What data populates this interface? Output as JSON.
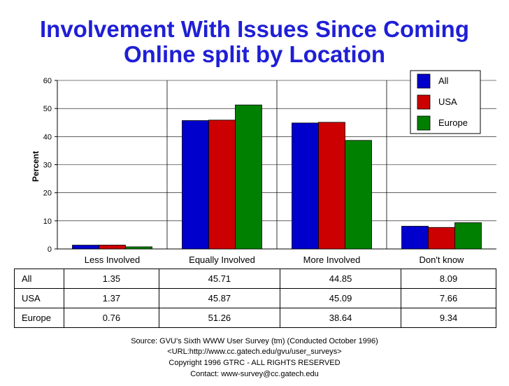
{
  "chart_data": {
    "type": "bar",
    "title": "Involvement With Issues Since Coming Online split by Location",
    "title_lines": [
      "Involvement With Issues Since Coming",
      "Online split by Location"
    ],
    "ylabel": "Percent",
    "ylim": [
      0,
      60
    ],
    "yticks": [
      0,
      10,
      20,
      30,
      40,
      50,
      60
    ],
    "categories": [
      "Less Involved",
      "Equally Involved",
      "More Involved",
      "Don't know"
    ],
    "series": [
      {
        "name": "All",
        "color": "#0000cc",
        "values": [
          1.35,
          45.71,
          44.85,
          8.09
        ]
      },
      {
        "name": "USA",
        "color": "#cc0000",
        "values": [
          1.37,
          45.87,
          45.09,
          7.66
        ]
      },
      {
        "name": "Europe",
        "color": "#008000",
        "values": [
          0.76,
          51.26,
          38.64,
          9.34
        ]
      }
    ],
    "table_rows": [
      {
        "label": "All",
        "values": [
          "1.35",
          "45.71",
          "44.85",
          "8.09"
        ]
      },
      {
        "label": "USA",
        "values": [
          "1.37",
          "45.87",
          "45.09",
          "7.66"
        ]
      },
      {
        "label": "Europe",
        "values": [
          "0.76",
          "51.26",
          "38.64",
          "9.34"
        ]
      }
    ],
    "legend_position": "top-right",
    "grid": true
  },
  "source": [
    "Source: GVU's Sixth WWW User Survey (tm) (Conducted October 1996)",
    "<URL:http://www.cc.gatech.edu/gvu/user_surveys>",
    "Copyright 1996 GTRC - ALL RIGHTS RESERVED",
    "Contact: www-survey@cc.gatech.edu"
  ]
}
